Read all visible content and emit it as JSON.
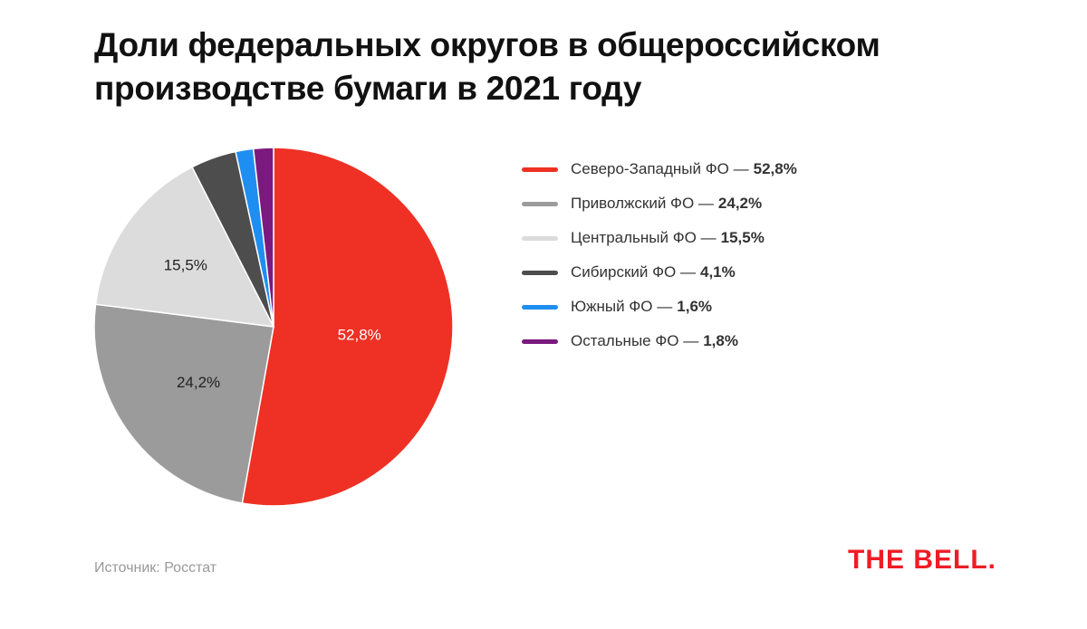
{
  "title": "Доли федеральных округов в общероссийском производстве бумаги в 2021 году",
  "source": "Источник: Росстат",
  "logo": "THE BELL.",
  "chart_data": {
    "type": "pie",
    "title": "Доли федеральных округов в общероссийском производстве бумаги в 2021 году",
    "legend_position": "right",
    "slices": [
      {
        "name": "Северо-Западный ФО",
        "value": 52.8,
        "label": "52,8%",
        "color": "#ee3124",
        "label_color": "#ffffff",
        "show_label": true
      },
      {
        "name": "Приволжский ФО",
        "value": 24.2,
        "label": "24,2%",
        "color": "#9b9b9b",
        "label_color": "#222222",
        "show_label": true
      },
      {
        "name": "Центральный ФО",
        "value": 15.5,
        "label": "15,5%",
        "color": "#dcdcdc",
        "label_color": "#222222",
        "show_label": true
      },
      {
        "name": "Сибирский ФО",
        "value": 4.1,
        "label": "4,1%",
        "color": "#4d4d4d",
        "show_label": false
      },
      {
        "name": "Южный ФО",
        "value": 1.6,
        "label": "1,6%",
        "color": "#1f8ef1",
        "show_label": false
      },
      {
        "name": "Остальные ФО",
        "value": 1.8,
        "label": "1,8%",
        "color": "#7b1a7e",
        "show_label": false
      }
    ],
    "legend_separator": "—"
  }
}
